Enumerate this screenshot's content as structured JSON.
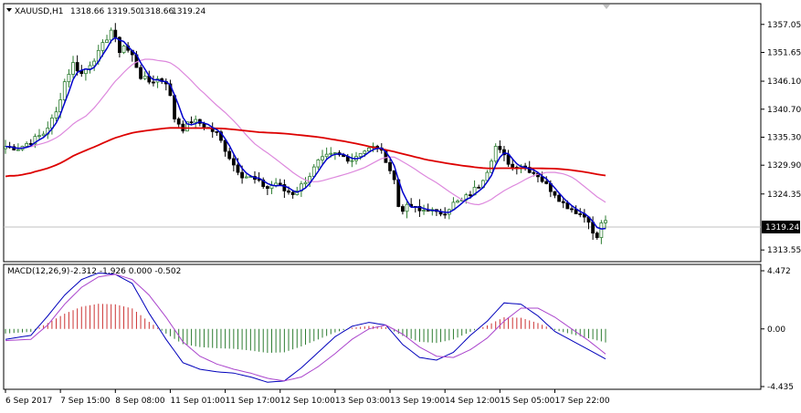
{
  "main_header": {
    "symbol": "XAUUSD,H1",
    "open": "1318.66",
    "high": "1319.50",
    "low": "1318.66",
    "close": "1319.24"
  },
  "macd_header": {
    "label": "MACD(12,26,9)",
    "values": "-2.312 -1.926 0.000 -0.502"
  },
  "current_price_label": "1319.24",
  "colors": {
    "up_bar": "#2e7d32",
    "down_bar": "#000000",
    "fast_ma": "#0000cc",
    "mid_ma": "#dd88dd",
    "slow_ma": "#dd0000",
    "macd_pos_hist": "#cc3333",
    "macd_neg_hist": "#2e7d32",
    "macd_line": "#0000bb",
    "signal_line": "#aa44cc",
    "grid_line": "#000000",
    "price_line": "#c0c0c0"
  },
  "chart_data": [
    {
      "type": "candlestick",
      "symbol": "XAUUSD",
      "timeframe": "H1",
      "ylim": [
        1312.0,
        1360.0
      ],
      "y_ticks": [
        "1357.05",
        "1351.65",
        "1346.10",
        "1340.70",
        "1335.30",
        "1329.90",
        "1324.35",
        "1313.55"
      ],
      "x_ticks": [
        "6 Sep 2017",
        "7 Sep 15:00",
        "8 Sep 08:00",
        "11 Sep 01:00",
        "11 Sep 17:00",
        "12 Sep 10:00",
        "13 Sep 03:00",
        "13 Sep 19:00",
        "14 Sep 12:00",
        "15 Sep 05:00",
        "17 Sep 22:00"
      ],
      "price_path": [
        [
          0,
          1333.5
        ],
        [
          3,
          1333.2
        ],
        [
          6,
          1334.5
        ],
        [
          9,
          1336.0
        ],
        [
          12,
          1340.0
        ],
        [
          14,
          1346.0
        ],
        [
          16,
          1349.5
        ],
        [
          18,
          1347.5
        ],
        [
          20,
          1349.5
        ],
        [
          22,
          1351.5
        ],
        [
          24,
          1354.5
        ],
        [
          25,
          1356.0
        ],
        [
          26,
          1354.0
        ],
        [
          27,
          1352.0
        ],
        [
          28,
          1353.0
        ],
        [
          30,
          1351.0
        ],
        [
          32,
          1347.0
        ],
        [
          34,
          1346.0
        ],
        [
          36,
          1346.5
        ],
        [
          38,
          1346.0
        ],
        [
          39,
          1343.0
        ],
        [
          40,
          1339.0
        ],
        [
          42,
          1337.0
        ],
        [
          44,
          1338.5
        ],
        [
          46,
          1338.0
        ],
        [
          48,
          1337.0
        ],
        [
          50,
          1336.0
        ],
        [
          52,
          1333.0
        ],
        [
          54,
          1330.0
        ],
        [
          56,
          1328.0
        ],
        [
          58,
          1327.5
        ],
        [
          60,
          1326.5
        ],
        [
          62,
          1325.5
        ],
        [
          64,
          1326.5
        ],
        [
          66,
          1325.0
        ],
        [
          68,
          1324.5
        ],
        [
          70,
          1326.0
        ],
        [
          72,
          1328.0
        ],
        [
          74,
          1330.5
        ],
        [
          76,
          1331.5
        ],
        [
          78,
          1332.0
        ],
        [
          80,
          1331.5
        ],
        [
          82,
          1331.0
        ],
        [
          84,
          1332.5
        ],
        [
          86,
          1333.0
        ],
        [
          88,
          1333.5
        ],
        [
          90,
          1331.0
        ],
        [
          92,
          1327.0
        ],
        [
          93,
          1322.0
        ],
        [
          94,
          1321.5
        ],
        [
          96,
          1322.0
        ],
        [
          98,
          1321.0
        ],
        [
          100,
          1321.5
        ],
        [
          102,
          1320.5
        ],
        [
          104,
          1321.0
        ],
        [
          106,
          1322.5
        ],
        [
          108,
          1323.0
        ],
        [
          110,
          1324.5
        ],
        [
          112,
          1326.0
        ],
        [
          114,
          1329.0
        ],
        [
          116,
          1333.5
        ],
        [
          118,
          1331.5
        ],
        [
          120,
          1329.5
        ],
        [
          122,
          1330.0
        ],
        [
          124,
          1329.0
        ],
        [
          126,
          1328.0
        ],
        [
          128,
          1326.0
        ],
        [
          130,
          1324.5
        ],
        [
          132,
          1322.5
        ],
        [
          134,
          1321.5
        ],
        [
          136,
          1320.5
        ],
        [
          138,
          1319.5
        ],
        [
          139,
          1316.5
        ],
        [
          140,
          1316.0
        ],
        [
          141,
          1318.5
        ],
        [
          142,
          1319.24
        ]
      ],
      "bar_count": 143,
      "indicators": [
        {
          "name": "fast MA",
          "color_key": "fast_ma"
        },
        {
          "name": "medium MA",
          "color_key": "mid_ma"
        },
        {
          "name": "slow MA",
          "color_key": "slow_ma"
        }
      ]
    },
    {
      "type": "bar",
      "name": "MACD(12,26,9)",
      "ylim": [
        -4.435,
        4.472
      ],
      "y_ticks": [
        "4.472",
        "0.00",
        "-4.435"
      ],
      "macd_line_path": [
        [
          0,
          -0.8
        ],
        [
          6,
          -0.5
        ],
        [
          10,
          1.0
        ],
        [
          14,
          2.6
        ],
        [
          18,
          3.8
        ],
        [
          22,
          4.3
        ],
        [
          26,
          4.2
        ],
        [
          30,
          3.5
        ],
        [
          34,
          1.2
        ],
        [
          38,
          -0.8
        ],
        [
          42,
          -2.6
        ],
        [
          46,
          -3.1
        ],
        [
          50,
          -3.3
        ],
        [
          54,
          -3.4
        ],
        [
          58,
          -3.7
        ],
        [
          62,
          -4.1
        ],
        [
          66,
          -4.0
        ],
        [
          70,
          -3.0
        ],
        [
          74,
          -1.8
        ],
        [
          78,
          -0.6
        ],
        [
          82,
          0.2
        ],
        [
          86,
          0.5
        ],
        [
          90,
          0.3
        ],
        [
          94,
          -1.2
        ],
        [
          98,
          -2.2
        ],
        [
          102,
          -2.4
        ],
        [
          106,
          -1.8
        ],
        [
          110,
          -0.5
        ],
        [
          114,
          0.6
        ],
        [
          118,
          2.0
        ],
        [
          122,
          1.9
        ],
        [
          126,
          1.0
        ],
        [
          130,
          -0.2
        ],
        [
          134,
          -0.9
        ],
        [
          138,
          -1.6
        ],
        [
          142,
          -2.31
        ]
      ],
      "signal_line_path": [
        [
          0,
          -0.9
        ],
        [
          6,
          -0.8
        ],
        [
          10,
          0.3
        ],
        [
          14,
          1.9
        ],
        [
          18,
          3.2
        ],
        [
          22,
          4.0
        ],
        [
          26,
          4.2
        ],
        [
          30,
          3.8
        ],
        [
          34,
          2.6
        ],
        [
          38,
          0.9
        ],
        [
          42,
          -1.0
        ],
        [
          46,
          -2.1
        ],
        [
          50,
          -2.7
        ],
        [
          54,
          -3.1
        ],
        [
          58,
          -3.4
        ],
        [
          62,
          -3.8
        ],
        [
          66,
          -4.0
        ],
        [
          70,
          -3.7
        ],
        [
          74,
          -2.9
        ],
        [
          78,
          -1.9
        ],
        [
          82,
          -0.8
        ],
        [
          86,
          0.0
        ],
        [
          90,
          0.3
        ],
        [
          94,
          -0.4
        ],
        [
          98,
          -1.4
        ],
        [
          102,
          -2.1
        ],
        [
          106,
          -2.2
        ],
        [
          110,
          -1.6
        ],
        [
          114,
          -0.7
        ],
        [
          118,
          0.6
        ],
        [
          122,
          1.6
        ],
        [
          126,
          1.6
        ],
        [
          130,
          0.9
        ],
        [
          134,
          0.0
        ],
        [
          138,
          -0.9
        ],
        [
          142,
          -1.93
        ]
      ]
    }
  ]
}
